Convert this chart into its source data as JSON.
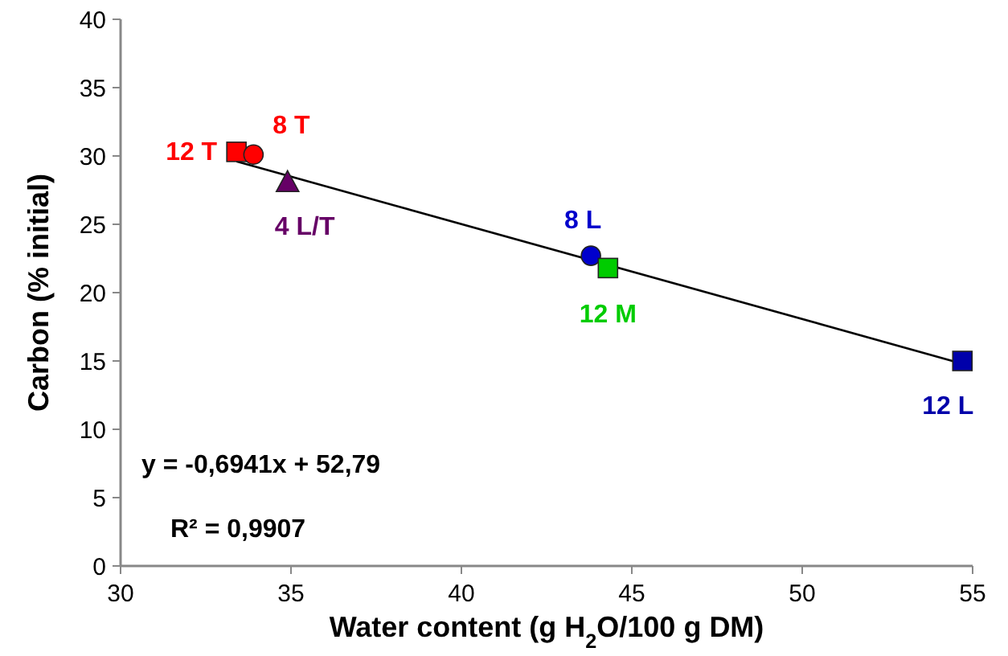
{
  "chart_data": {
    "type": "scatter",
    "xlabel": "Water content (g H$_{2}$O/100 g DM)",
    "ylabel": "Carbon (% initial)",
    "xlim": [
      30,
      55
    ],
    "xticks": [
      30,
      35,
      40,
      45,
      50,
      55
    ],
    "ylim": [
      0,
      40
    ],
    "yticks": [
      0,
      5,
      10,
      15,
      20,
      25,
      30,
      35,
      40
    ],
    "grid": false,
    "series": [
      {
        "name": "12 T",
        "color": "#ff0000",
        "marker": "square",
        "x": [
          33.4
        ],
        "values": [
          30.3
        ]
      },
      {
        "name": "8 T",
        "color": "#ff0000",
        "marker": "circle",
        "x": [
          33.9
        ],
        "values": [
          30.1
        ]
      },
      {
        "name": "4 L/T",
        "color": "#660066",
        "marker": "triangle",
        "x": [
          34.9
        ],
        "values": [
          28.1
        ]
      },
      {
        "name": "8 L",
        "color": "#0000cc",
        "marker": "circle",
        "x": [
          43.8
        ],
        "values": [
          22.7
        ]
      },
      {
        "name": "12 M",
        "color": "#00cc00",
        "marker": "square",
        "x": [
          44.3
        ],
        "values": [
          21.8
        ]
      },
      {
        "name": "12 L",
        "color": "#0000aa",
        "marker": "square",
        "x": [
          54.7
        ],
        "values": [
          15.0
        ]
      },
      {
        "type": "line",
        "color": "#000000",
        "x": [
          33.4,
          54.7
        ],
        "values": [
          29.6,
          14.8
        ]
      }
    ],
    "annotations": [
      "y = -0,6941x + 52,79",
      "R² = 0,9907"
    ]
  }
}
